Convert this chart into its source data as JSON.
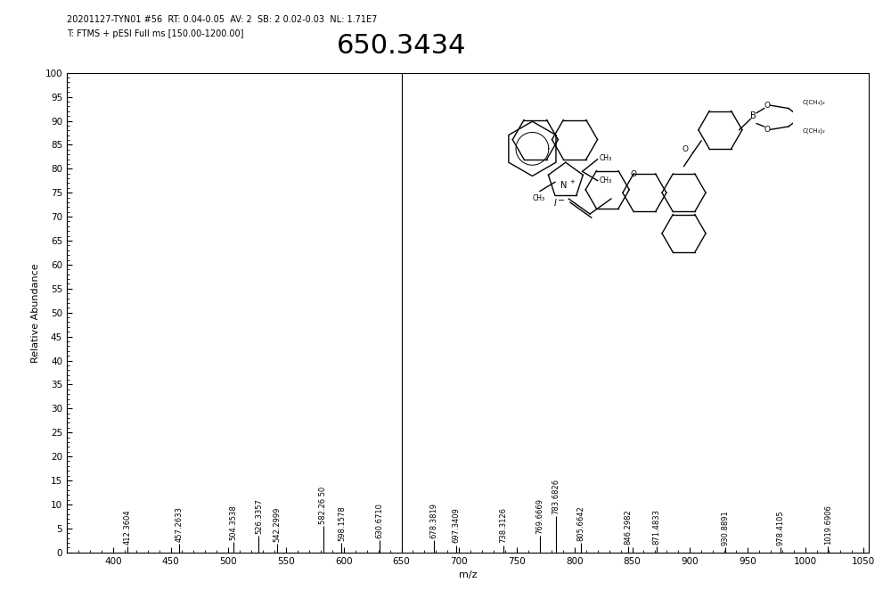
{
  "header_line1": "20201127-TYN01 #56  RT: 0.04-0.05  AV: 2  SB: 2 0.02-0.03  NL: 1.71E7",
  "header_line2": "T: FTMS + pESI Full ms [150.00-1200.00]",
  "main_peak_label": "650.3434",
  "xlabel": "m/z",
  "ylabel": "Relative Abundance",
  "xlim": [
    360,
    1055
  ],
  "ylim": [
    0,
    100
  ],
  "yticks": [
    0,
    5,
    10,
    15,
    20,
    25,
    30,
    35,
    40,
    45,
    50,
    55,
    60,
    65,
    70,
    75,
    80,
    85,
    90,
    95,
    100
  ],
  "xticks": [
    400,
    450,
    500,
    550,
    600,
    650,
    700,
    750,
    800,
    850,
    900,
    950,
    1000,
    1050
  ],
  "peaks": [
    {
      "mz": 412.3604,
      "rel": 1.2,
      "label": "412.3604"
    },
    {
      "mz": 457.2633,
      "rel": 1.8,
      "label": "457.2633"
    },
    {
      "mz": 504.3538,
      "rel": 2.2,
      "label": "504.3538"
    },
    {
      "mz": 526.3357,
      "rel": 3.5,
      "label": "526.3357"
    },
    {
      "mz": 542.2999,
      "rel": 1.8,
      "label": "542.2999"
    },
    {
      "mz": 582.265,
      "rel": 5.5,
      "label": "582.26 50"
    },
    {
      "mz": 598.1578,
      "rel": 2.0,
      "label": "598.1578"
    },
    {
      "mz": 630.671,
      "rel": 2.5,
      "label": "630.6710"
    },
    {
      "mz": 650.3434,
      "rel": 100.0,
      "label": null
    },
    {
      "mz": 678.3819,
      "rel": 2.5,
      "label": "678.3819"
    },
    {
      "mz": 697.3409,
      "rel": 1.5,
      "label": "697.3409"
    },
    {
      "mz": 738.3126,
      "rel": 1.5,
      "label": "738.3126"
    },
    {
      "mz": 769.6669,
      "rel": 3.5,
      "label": "769.6669"
    },
    {
      "mz": 783.6826,
      "rel": 7.5,
      "label": "783.6826"
    },
    {
      "mz": 805.6642,
      "rel": 2.0,
      "label": "805.6642"
    },
    {
      "mz": 846.2982,
      "rel": 1.2,
      "label": "846.2982"
    },
    {
      "mz": 871.4833,
      "rel": 1.2,
      "label": "871.4833"
    },
    {
      "mz": 930.8891,
      "rel": 1.0,
      "label": "930.8891"
    },
    {
      "mz": 978.4105,
      "rel": 1.0,
      "label": "978.4105"
    },
    {
      "mz": 1019.6906,
      "rel": 1.2,
      "label": "1019.6906"
    }
  ],
  "background_color": "#ffffff",
  "peak_color": "#000000",
  "label_fontsize": 6.0,
  "header_fontsize": 7.0,
  "main_label_fontsize": 22,
  "axis_label_fontsize": 8,
  "tick_fontsize": 7.5
}
